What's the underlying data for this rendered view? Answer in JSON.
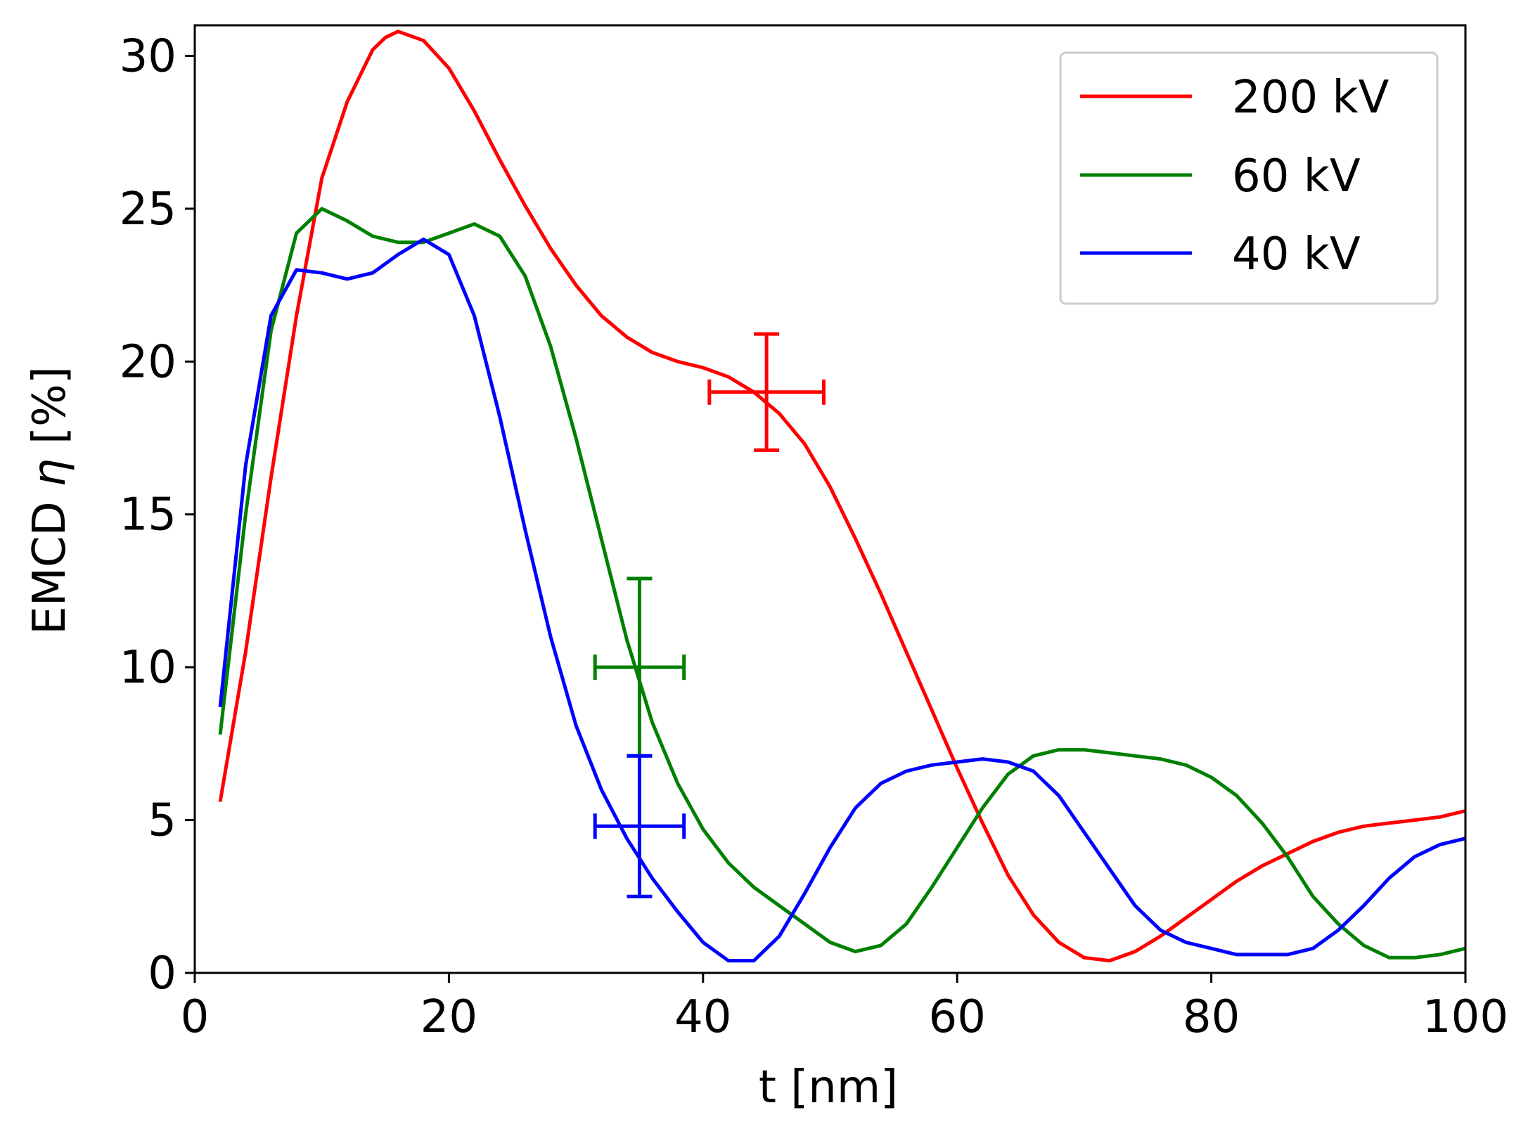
{
  "chart_data": {
    "type": "line",
    "title": "",
    "xlabel": "t [nm]",
    "ylabel_prefix": "EMCD ",
    "ylabel_symbol": "η",
    "ylabel_suffix": " [%]",
    "xlim": [
      0,
      100
    ],
    "ylim": [
      0,
      31
    ],
    "xticks": [
      0,
      20,
      40,
      60,
      80,
      100
    ],
    "yticks": [
      0,
      5,
      10,
      15,
      20,
      25,
      30
    ],
    "grid": false,
    "legend_position": "top-right",
    "series": [
      {
        "name": "200 kV",
        "color": "#ff0000",
        "x": [
          2,
          4,
          6,
          8,
          10,
          12,
          14,
          15,
          16,
          18,
          20,
          22,
          24,
          26,
          28,
          30,
          32,
          34,
          36,
          38,
          40,
          42,
          44,
          46,
          48,
          50,
          52,
          54,
          56,
          58,
          60,
          62,
          64,
          66,
          68,
          70,
          72,
          74,
          76,
          78,
          80,
          82,
          84,
          86,
          88,
          90,
          92,
          94,
          96,
          98,
          100
        ],
        "y": [
          5.6,
          10.5,
          16.2,
          21.5,
          26.0,
          28.5,
          30.2,
          30.6,
          30.8,
          30.5,
          29.6,
          28.2,
          26.6,
          25.1,
          23.7,
          22.5,
          21.5,
          20.8,
          20.3,
          20.0,
          19.8,
          19.5,
          19.0,
          18.3,
          17.3,
          15.9,
          14.2,
          12.4,
          10.5,
          8.6,
          6.7,
          4.9,
          3.2,
          1.9,
          1.0,
          0.5,
          0.4,
          0.7,
          1.2,
          1.8,
          2.4,
          3.0,
          3.5,
          3.9,
          4.3,
          4.6,
          4.8,
          4.9,
          5.0,
          5.1,
          5.3
        ]
      },
      {
        "name": "60 kV",
        "color": "#008000",
        "x": [
          2,
          4,
          6,
          8,
          10,
          12,
          14,
          16,
          18,
          20,
          22,
          24,
          26,
          28,
          30,
          32,
          34,
          36,
          38,
          40,
          42,
          44,
          46,
          48,
          50,
          52,
          54,
          56,
          58,
          60,
          62,
          64,
          66,
          68,
          70,
          72,
          74,
          76,
          78,
          80,
          82,
          84,
          86,
          88,
          90,
          92,
          94,
          96,
          98,
          100
        ],
        "y": [
          7.8,
          15.0,
          21.0,
          24.2,
          25.0,
          24.6,
          24.1,
          23.9,
          23.9,
          24.2,
          24.5,
          24.1,
          22.8,
          20.5,
          17.5,
          14.2,
          10.9,
          8.2,
          6.2,
          4.7,
          3.6,
          2.8,
          2.2,
          1.6,
          1.0,
          0.7,
          0.9,
          1.6,
          2.8,
          4.1,
          5.4,
          6.5,
          7.1,
          7.3,
          7.3,
          7.2,
          7.1,
          7.0,
          6.8,
          6.4,
          5.8,
          4.9,
          3.8,
          2.5,
          1.6,
          0.9,
          0.5,
          0.5,
          0.6,
          0.8
        ]
      },
      {
        "name": "40 kV",
        "color": "#0000ff",
        "x": [
          2,
          4,
          6,
          8,
          10,
          12,
          14,
          16,
          18,
          20,
          22,
          24,
          26,
          28,
          30,
          32,
          34,
          36,
          38,
          40,
          42,
          44,
          46,
          48,
          50,
          52,
          54,
          56,
          58,
          60,
          62,
          64,
          66,
          68,
          70,
          72,
          74,
          76,
          78,
          80,
          82,
          84,
          86,
          88,
          90,
          92,
          94,
          96,
          98,
          100
        ],
        "y": [
          8.7,
          16.6,
          21.5,
          23.0,
          22.9,
          22.7,
          22.9,
          23.5,
          24.0,
          23.5,
          21.5,
          18.2,
          14.5,
          11.0,
          8.1,
          6.0,
          4.4,
          3.1,
          2.0,
          1.0,
          0.4,
          0.4,
          1.2,
          2.6,
          4.1,
          5.4,
          6.2,
          6.6,
          6.8,
          6.9,
          7.0,
          6.9,
          6.6,
          5.8,
          4.6,
          3.4,
          2.2,
          1.4,
          1.0,
          0.8,
          0.6,
          0.6,
          0.6,
          0.8,
          1.4,
          2.2,
          3.1,
          3.8,
          4.2,
          4.4
        ]
      }
    ],
    "error_bars": [
      {
        "series": "200 kV",
        "color": "#ff0000",
        "x": 45,
        "y": 19,
        "xerr": 4.5,
        "yerr": 1.9
      },
      {
        "series": "60 kV",
        "color": "#008000",
        "x": 35,
        "y": 10,
        "xerr": 3.5,
        "yerr": 2.9
      },
      {
        "series": "40 kV",
        "color": "#0000ff",
        "x": 35,
        "y": 4.8,
        "xerr": 3.5,
        "yerr": 2.3
      }
    ]
  }
}
